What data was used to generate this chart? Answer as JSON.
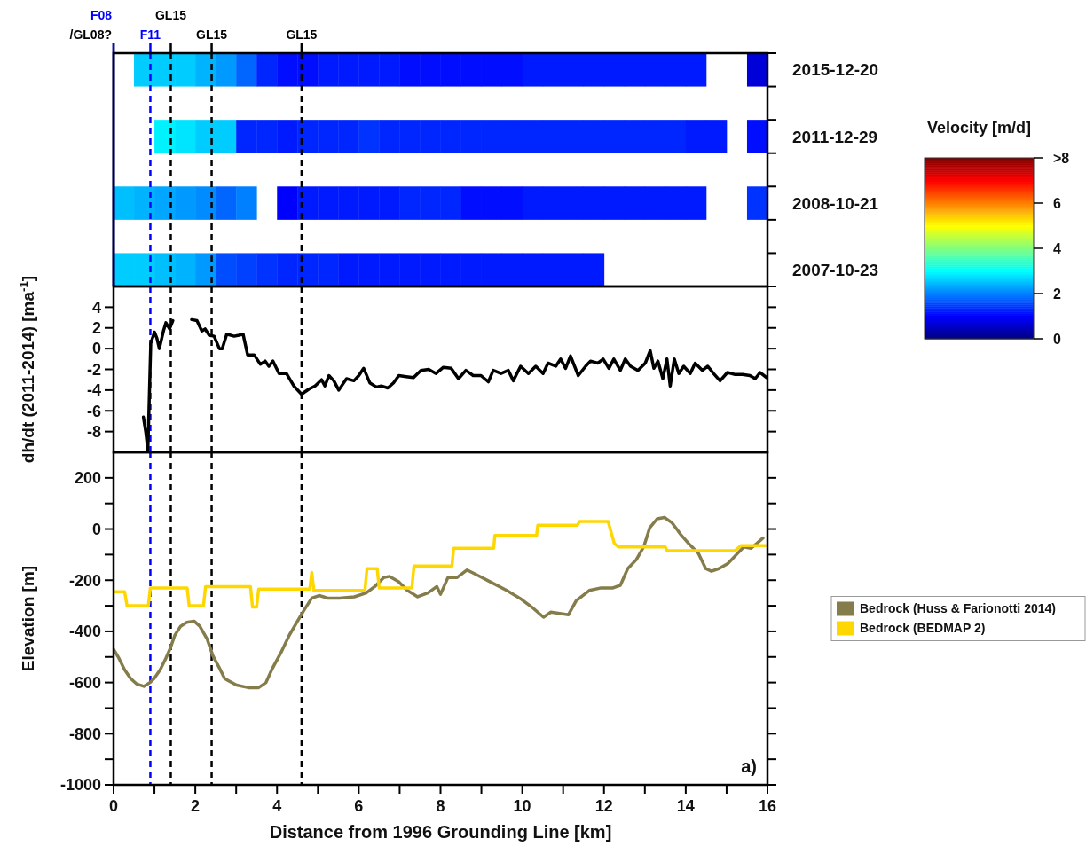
{
  "chart_data": [
    {
      "type": "heatmap",
      "clabel": "Velocity [m/d]",
      "xlim": [
        0,
        16
      ],
      "tick_labels": "y",
      "x": [
        0.25,
        0.75,
        1.25,
        1.75,
        2.25,
        2.75,
        3.25,
        3.75,
        4.25,
        4.75,
        5.25,
        5.75,
        6.25,
        6.75,
        7.25,
        7.75,
        8.25,
        8.75,
        9.25,
        9.75,
        10.25,
        10.75,
        11.25,
        11.75,
        12.25,
        12.75,
        13.25,
        13.75,
        14.25,
        14.75,
        15.25,
        15.75
      ],
      "y_categories": [
        "2015-12-20",
        "2011-12-29",
        "2008-10-21",
        "2007-10-23"
      ],
      "cells": [
        [
          null,
          2.6,
          2.6,
          2.6,
          2.4,
          2.2,
          1.8,
          1.3,
          1.1,
          1.1,
          1.2,
          1.2,
          1.2,
          1.2,
          1.1,
          1.1,
          1.1,
          1.1,
          1.1,
          1.1,
          1.2,
          1.2,
          1.2,
          1.2,
          1.2,
          1.2,
          1.2,
          1.2,
          1.2,
          null,
          null,
          0.7
        ],
        [
          null,
          null,
          2.9,
          2.8,
          2.6,
          2.6,
          1.3,
          1.3,
          1.2,
          1.3,
          1.3,
          1.3,
          1.4,
          1.3,
          1.3,
          1.3,
          1.3,
          1.3,
          1.3,
          1.3,
          1.3,
          1.3,
          1.3,
          1.3,
          1.3,
          1.3,
          1.3,
          1.3,
          1.2,
          1.2,
          null,
          1.1
        ],
        [
          2.5,
          2.4,
          2.3,
          2.2,
          2.1,
          1.8,
          2.0,
          null,
          1.0,
          1.2,
          1.2,
          1.2,
          1.2,
          1.2,
          1.3,
          1.3,
          1.3,
          1.1,
          1.1,
          1.1,
          1.2,
          1.2,
          1.2,
          1.2,
          1.2,
          1.2,
          1.2,
          1.2,
          1.2,
          null,
          null,
          1.4
        ],
        [
          2.6,
          2.6,
          2.5,
          2.4,
          2.2,
          1.6,
          1.5,
          1.4,
          1.3,
          1.3,
          1.3,
          1.2,
          1.2,
          1.2,
          1.2,
          1.2,
          1.2,
          1.2,
          1.2,
          1.2,
          1.2,
          1.2,
          1.2,
          1.2,
          null,
          null,
          null,
          null,
          null,
          null,
          null,
          null
        ]
      ],
      "clim": [
        0,
        8
      ],
      "cticks": [
        0,
        2,
        4,
        6,
        {
          "value": 8,
          "label": ">8"
        }
      ],
      "ref_lines": [
        {
          "axis": "x",
          "value": 0,
          "label": "/GL08?",
          "color": "#000000",
          "line_style": "solid"
        },
        {
          "axis": "x",
          "value": 0,
          "label": "F08",
          "color": "#0000ff",
          "line_style": "solid"
        },
        {
          "axis": "x",
          "value": 0.9,
          "label": "F11",
          "color": "#0000ff",
          "line_style": "dashed"
        },
        {
          "axis": "x",
          "value": 1.4,
          "label": "GL15",
          "color": "#000000",
          "line_style": "dashed"
        },
        {
          "axis": "x",
          "value": 2.4,
          "label": "GL15",
          "color": "#000000",
          "line_style": "dashed"
        },
        {
          "axis": "x",
          "value": 4.6,
          "label": "GL15",
          "color": "#000000",
          "line_style": "dashed"
        }
      ]
    },
    {
      "type": "line",
      "ylabel": "dh/dt (2011-2014) [ma$^{-1}$]",
      "xlim": [
        0,
        16
      ],
      "ylim": [
        -10,
        6
      ],
      "yticks": [
        -8,
        -6,
        -4,
        -2,
        0,
        2,
        4
      ],
      "tick_labels": "y",
      "ref_lines": [
        {
          "axis": "x",
          "value": 0.9,
          "color": "#0000ff",
          "line_style": "dashed"
        },
        {
          "axis": "x",
          "value": 1.4,
          "color": "#000000",
          "line_style": "dashed"
        },
        {
          "axis": "x",
          "value": 2.4,
          "color": "#000000",
          "line_style": "dashed"
        },
        {
          "axis": "x",
          "value": 4.6,
          "color": "#000000",
          "line_style": "dashed"
        }
      ],
      "series": [
        {
          "color": "#000000",
          "x": [
            0.73,
            0.79,
            0.84,
            0.91,
            1.0,
            1.06,
            1.12,
            1.22,
            1.28,
            1.37,
            1.45,
            1.7,
            1.91,
            2.04,
            2.16,
            2.24,
            2.34,
            2.46,
            2.59,
            2.66,
            2.77,
            2.95,
            3.07,
            3.17,
            3.28,
            3.44,
            3.59,
            3.71,
            3.8,
            3.9,
            4.05,
            4.23,
            4.41,
            4.6,
            4.78,
            4.93,
            5.09,
            5.17,
            5.27,
            5.39,
            5.51,
            5.7,
            5.88,
            6.0,
            6.12,
            6.27,
            6.43,
            6.55,
            6.71,
            6.85,
            6.98,
            7.16,
            7.34,
            7.52,
            7.71,
            7.89,
            8.07,
            8.26,
            8.44,
            8.62,
            8.8,
            8.99,
            9.17,
            9.29,
            9.48,
            9.66,
            9.78,
            9.96,
            10.15,
            10.33,
            10.51,
            10.63,
            10.82,
            10.94,
            11.06,
            11.18,
            11.37,
            11.55,
            11.67,
            11.85,
            11.98,
            12.12,
            12.24,
            12.4,
            12.52,
            12.65,
            12.83,
            13.01,
            13.13,
            13.22,
            13.32,
            13.44,
            13.54,
            13.62,
            13.72,
            13.83,
            13.95,
            14.11,
            14.23,
            14.41,
            14.54,
            14.68,
            14.84,
            15.02,
            15.21,
            15.39,
            15.57,
            15.7,
            15.82,
            15.98
          ],
          "values": [
            -6.6,
            -8.1,
            -9.8,
            0.5,
            1.6,
            1.0,
            0,
            1.7,
            2.5,
            1.9,
            2.7,
            null,
            2.8,
            2.7,
            1.7,
            1.9,
            1.3,
            1.2,
            0,
            0,
            1.4,
            1.2,
            1.3,
            1.4,
            -0.6,
            -0.6,
            -1.5,
            -1.2,
            -1.7,
            -1.2,
            -2.4,
            -2.4,
            -3.6,
            -4.4,
            -3.9,
            -3.6,
            -3.0,
            -3.6,
            -2.6,
            -3.1,
            -4.0,
            -2.9,
            -3.1,
            -2.6,
            -1.9,
            -3.3,
            -3.7,
            -3.6,
            -3.8,
            -3.3,
            -2.6,
            -2.7,
            -2.8,
            -2.1,
            -2.0,
            -2.4,
            -1.8,
            -1.9,
            -2.9,
            -2.1,
            -2.6,
            -2.6,
            -3.2,
            -2.1,
            -2.4,
            -2.1,
            -3.1,
            -1.7,
            -2.4,
            -1.7,
            -2.4,
            -1.4,
            -1.7,
            -1.0,
            -1.9,
            -0.7,
            -2.6,
            -1.7,
            -1.2,
            -1.4,
            -1.0,
            -1.9,
            -1.0,
            -2.1,
            -1.0,
            -1.7,
            -2.1,
            -1.4,
            -0.2,
            -1.9,
            -1.2,
            -2.9,
            -1.0,
            -3.6,
            -1.0,
            -2.4,
            -1.7,
            -2.4,
            -1.4,
            -2.1,
            -1.7,
            -2.4,
            -3.1,
            -2.3,
            -2.5,
            -2.5,
            -2.6,
            -2.9,
            -2.3,
            -2.8
          ]
        }
      ]
    },
    {
      "type": "line",
      "xlabel": "Distance from 1996 Grounding Line [km]",
      "ylabel": "Elevation [m]",
      "xlim": [
        0,
        16
      ],
      "ylim": [
        -1000,
        300
      ],
      "xticks": [
        0,
        {
          "value": 1,
          "label": null
        },
        2,
        {
          "value": 3,
          "label": null
        },
        4,
        {
          "value": 5,
          "label": null
        },
        6,
        {
          "value": 7,
          "label": null
        },
        8,
        {
          "value": 9,
          "label": null
        },
        10,
        {
          "value": 11,
          "label": null
        },
        12,
        {
          "value": 13,
          "label": null
        },
        14,
        {
          "value": 15,
          "label": null
        },
        16
      ],
      "yticks": [
        -1000,
        {
          "value": -900,
          "label": null
        },
        -800,
        {
          "value": -700,
          "label": null
        },
        -600,
        {
          "value": -500,
          "label": null
        },
        -400,
        {
          "value": -300,
          "label": null
        },
        -200,
        {
          "value": -100,
          "label": null
        },
        0,
        {
          "value": 100,
          "label": null
        },
        200
      ],
      "legend": "right",
      "annotations": [
        "a)"
      ],
      "ref_lines": [
        {
          "axis": "x",
          "value": 0.9,
          "color": "#0000ff",
          "line_style": "dashed"
        },
        {
          "axis": "x",
          "value": 1.4,
          "color": "#000000",
          "line_style": "dashed"
        },
        {
          "axis": "x",
          "value": 2.4,
          "color": "#000000",
          "line_style": "dashed"
        },
        {
          "axis": "x",
          "value": 4.6,
          "color": "#000000",
          "line_style": "dashed"
        }
      ],
      "series": [
        {
          "name": "Bedrock (Huss & Farionotti 2014)",
          "color": "#857c4c",
          "x": [
            0,
            0.13,
            0.27,
            0.42,
            0.56,
            0.74,
            0.89,
            0.99,
            1.14,
            1.28,
            1.39,
            1.5,
            1.64,
            1.79,
            1.97,
            2.11,
            2.29,
            2.43,
            2.58,
            2.72,
            3.01,
            3.3,
            3.55,
            3.73,
            3.87,
            4.09,
            4.3,
            4.52,
            4.67,
            4.85,
            5.03,
            5.24,
            5.53,
            5.89,
            6.18,
            6.39,
            6.61,
            6.75,
            6.97,
            7.19,
            7.44,
            7.69,
            7.91,
            8.0,
            8.18,
            8.4,
            8.65,
            8.9,
            9.26,
            9.62,
            9.98,
            10.27,
            10.52,
            10.7,
            11.13,
            11.32,
            11.64,
            11.93,
            12.22,
            12.4,
            12.58,
            12.79,
            12.97,
            13.12,
            13.3,
            13.48,
            13.66,
            13.87,
            14.09,
            14.31,
            14.49,
            14.63,
            14.81,
            15.03,
            15.24,
            15.42,
            15.6,
            15.75,
            15.89
          ],
          "values": [
            -470,
            -505,
            -550,
            -585,
            -605,
            -615,
            -600,
            -585,
            -550,
            -505,
            -465,
            -415,
            -380,
            -365,
            -360,
            -380,
            -430,
            -495,
            -540,
            -585,
            -610,
            -620,
            -620,
            -600,
            -550,
            -485,
            -415,
            -355,
            -315,
            -270,
            -260,
            -270,
            -270,
            -265,
            -250,
            -225,
            -190,
            -185,
            -205,
            -240,
            -265,
            -250,
            -225,
            -255,
            -190,
            -190,
            -160,
            -180,
            -210,
            -240,
            -275,
            -310,
            -345,
            -325,
            -335,
            -280,
            -240,
            -230,
            -230,
            -220,
            -155,
            -120,
            -70,
            5,
            40,
            45,
            25,
            -20,
            -60,
            -95,
            -155,
            -165,
            -155,
            -135,
            -100,
            -70,
            -75,
            -55,
            -35
          ]
        },
        {
          "name": "Bedrock (BEDMAP 2)",
          "color": "#ffd700",
          "x": [
            0,
            0.27,
            0.33,
            0.85,
            0.9,
            1.8,
            1.85,
            2.2,
            2.25,
            3.35,
            3.4,
            3.5,
            3.55,
            4.8,
            4.85,
            4.9,
            6.15,
            6.2,
            6.45,
            6.5,
            7.3,
            7.35,
            8.28,
            8.32,
            9.3,
            9.33,
            10.35,
            10.38,
            11.35,
            11.4,
            12.1,
            12.25,
            12.35,
            13.5,
            13.55,
            15.2,
            15.35,
            15.95
          ],
          "values": [
            -245,
            -245,
            -300,
            -300,
            -230,
            -230,
            -300,
            -300,
            -225,
            -225,
            -305,
            -305,
            -235,
            -235,
            -170,
            -240,
            -240,
            -155,
            -155,
            -230,
            -230,
            -145,
            -145,
            -75,
            -75,
            -25,
            -25,
            15,
            15,
            30,
            30,
            -55,
            -70,
            -70,
            -85,
            -85,
            -65,
            -65
          ]
        }
      ]
    }
  ]
}
